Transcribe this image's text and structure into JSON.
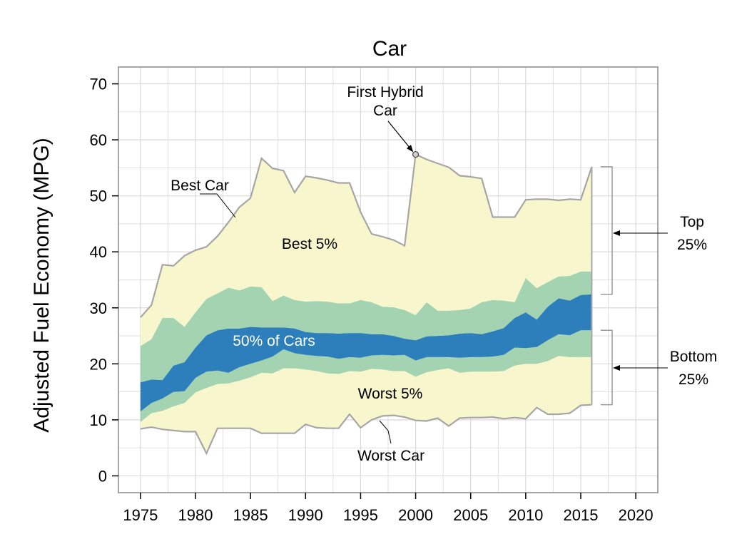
{
  "chart_data": {
    "type": "area",
    "title": "Car",
    "xlabel": "",
    "ylabel": "Adjusted Fuel Economy (MPG)",
    "xlim": [
      1973,
      2022
    ],
    "ylim": [
      -3,
      73
    ],
    "xticks": [
      1975,
      1980,
      1985,
      1990,
      1995,
      2000,
      2005,
      2010,
      2015,
      2020
    ],
    "yticks": [
      0,
      10,
      20,
      30,
      40,
      50,
      60,
      70
    ],
    "grid": true,
    "x": [
      1975,
      1976,
      1977,
      1978,
      1979,
      1980,
      1981,
      1982,
      1983,
      1984,
      1985,
      1986,
      1987,
      1988,
      1989,
      1990,
      1991,
      1992,
      1993,
      1994,
      1995,
      1996,
      1997,
      1998,
      1999,
      2000,
      2001,
      2002,
      2003,
      2004,
      2005,
      2006,
      2007,
      2008,
      2009,
      2010,
      2011,
      2012,
      2013,
      2014,
      2015,
      2016
    ],
    "series": [
      {
        "name": "Worst Car",
        "values": [
          8.4,
          8.7,
          8.3,
          8.1,
          7.9,
          7.9,
          4.0,
          8.5,
          8.5,
          8.5,
          8.5,
          7.6,
          7.6,
          7.6,
          7.6,
          9.2,
          8.6,
          8.5,
          8.5,
          11.0,
          8.6,
          10.0,
          10.7,
          10.8,
          10.5,
          9.9,
          9.8,
          10.3,
          8.9,
          10.3,
          10.4,
          10.4,
          10.5,
          10.2,
          10.4,
          10.2,
          12.2,
          11.0,
          11.0,
          11.2,
          12.6,
          12.7
        ]
      },
      {
        "name": "Worst 5%",
        "values": [
          9.6,
          11.2,
          11.6,
          12.4,
          13.0,
          14.9,
          15.7,
          16.4,
          16.5,
          17.0,
          17.6,
          18.4,
          18.3,
          19.2,
          19.2,
          19.0,
          18.7,
          18.3,
          18.2,
          18.7,
          18.6,
          19.1,
          19.0,
          18.7,
          18.7,
          17.7,
          18.5,
          18.9,
          19.2,
          18.4,
          18.6,
          18.6,
          18.6,
          18.7,
          19.7,
          20.0,
          20.0,
          20.5,
          21.4,
          21.2,
          21.2,
          21.2
        ]
      },
      {
        "name": "Bottom 25%",
        "values": [
          11.5,
          13.0,
          13.8,
          15.0,
          15.1,
          17.5,
          18.6,
          18.8,
          18.4,
          19.4,
          20.0,
          20.6,
          21.3,
          22.6,
          21.9,
          21.6,
          21.4,
          21.3,
          20.9,
          21.2,
          21.1,
          21.5,
          21.6,
          21.5,
          21.6,
          20.6,
          21.2,
          21.2,
          21.2,
          21.1,
          21.2,
          21.2,
          21.3,
          21.6,
          22.9,
          22.8,
          23.0,
          24.2,
          25.3,
          25.1,
          26.0,
          26.0
        ]
      },
      {
        "name": "Top 25%",
        "values": [
          16.7,
          17.2,
          17.1,
          19.7,
          20.3,
          22.9,
          25.1,
          26.0,
          26.3,
          26.3,
          26.6,
          26.5,
          26.5,
          26.5,
          26.3,
          25.7,
          25.5,
          25.5,
          25.4,
          25.5,
          25.5,
          25.3,
          25.3,
          25.0,
          24.5,
          24.2,
          24.9,
          25.0,
          25.1,
          25.4,
          25.5,
          25.3,
          25.8,
          26.4,
          28.2,
          29.2,
          27.9,
          30.2,
          31.7,
          31.3,
          32.3,
          32.4
        ]
      },
      {
        "name": "Best 5%",
        "values": [
          23.2,
          24.4,
          28.2,
          28.2,
          26.6,
          29.2,
          31.6,
          32.6,
          33.6,
          33.1,
          33.8,
          33.7,
          31.2,
          32.2,
          31.4,
          31.1,
          31.2,
          31.1,
          30.8,
          30.8,
          31.4,
          31.0,
          30.2,
          30.1,
          29.6,
          28.7,
          31.0,
          29.5,
          29.5,
          29.6,
          29.9,
          31.0,
          31.4,
          31.3,
          31.0,
          35.3,
          33.5,
          34.6,
          35.6,
          35.7,
          36.5,
          36.5
        ]
      },
      {
        "name": "Best Car",
        "values": [
          28.3,
          30.5,
          37.7,
          37.5,
          39.3,
          40.3,
          40.9,
          42.8,
          45.3,
          48.0,
          49.6,
          56.7,
          54.9,
          54.5,
          50.6,
          53.5,
          53.2,
          52.8,
          52.3,
          52.3,
          47.1,
          43.2,
          42.7,
          42.1,
          41.1,
          57.4,
          56.5,
          55.8,
          55.1,
          53.6,
          53.4,
          53.1,
          46.2,
          46.2,
          46.2,
          49.3,
          49.4,
          49.4,
          49.2,
          49.4,
          49.3,
          55.2
        ]
      }
    ],
    "band_labels": {
      "best5": "Best 5%",
      "cars50": "50% of Cars",
      "worst5": "Worst 5%"
    },
    "annotations": {
      "best_car": "Best Car",
      "worst_car": "Worst Car",
      "first_hybrid_line1": "First Hybrid",
      "first_hybrid_line2": "Car",
      "top_line1": "Top",
      "top_line2": "25%",
      "bottom_line1": "Bottom",
      "bottom_line2": "25%"
    },
    "hybrid_point": {
      "x": 2000,
      "y": 57.4
    },
    "colors": {
      "outer_band": "#f7f6cd",
      "quartile_band": "#a3d3b1",
      "middle_band": "#2d7fbb",
      "boundary": "#a6a6a6",
      "grid": "#d9d9d9",
      "frame": "#a6a6a6"
    }
  }
}
